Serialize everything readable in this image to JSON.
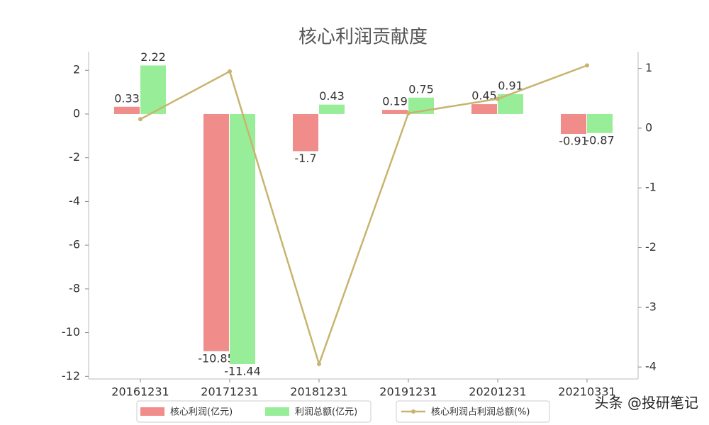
{
  "chart_data": {
    "type": "bar",
    "title": "核心利润贡献度",
    "categories": [
      "20161231",
      "20171231",
      "20181231",
      "20191231",
      "20201231",
      "20210331"
    ],
    "series": [
      {
        "name": "核心利润(亿元)",
        "color": "#f08c8a",
        "values": [
          0.33,
          -10.85,
          -1.7,
          0.19,
          0.45,
          -0.91
        ]
      },
      {
        "name": "利润总额(亿元)",
        "color": "#98ee98",
        "values": [
          2.22,
          -11.44,
          0.43,
          0.75,
          0.91,
          -0.87
        ]
      },
      {
        "name": "核心利润占利润总额(%)",
        "color": "#c8b46e",
        "type": "line",
        "axis": "y2",
        "values": [
          0.15,
          0.95,
          -3.95,
          0.25,
          0.49,
          1.05
        ]
      }
    ],
    "ylim": [
      -12.12,
      2.85
    ],
    "yticks": [
      2,
      0,
      -2,
      -4,
      -6,
      -8,
      -10,
      -12
    ],
    "y2lim": [
      -4.2,
      1.28
    ],
    "y2ticks": [
      1,
      0,
      -1,
      -2,
      -3,
      -4
    ],
    "watermark": "头条 @投研笔记"
  }
}
